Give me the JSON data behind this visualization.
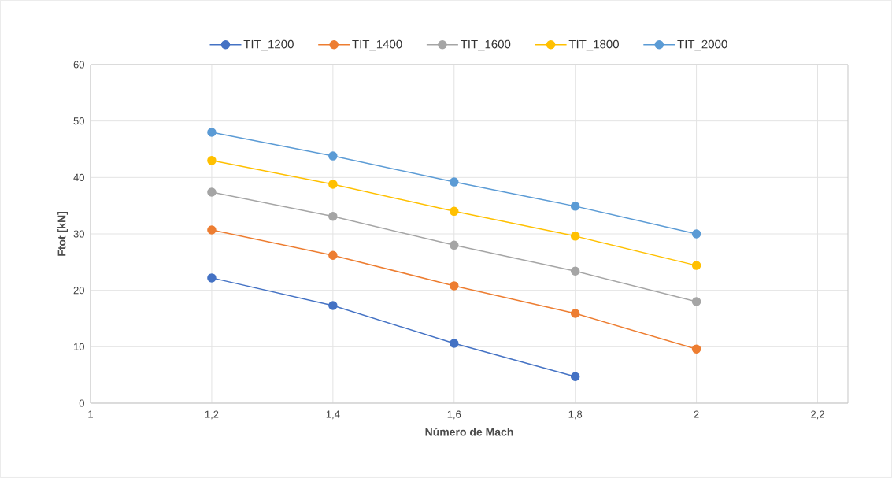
{
  "chart_data": {
    "type": "line",
    "xlabel": "Número de Mach",
    "ylabel": "Ftot [kN]",
    "x": [
      1.2,
      1.4,
      1.6,
      1.8,
      2.0
    ],
    "series": [
      {
        "name": "TIT_1200",
        "color": "#4472c4",
        "values": [
          22.2,
          17.3,
          10.6,
          4.7,
          null
        ]
      },
      {
        "name": "TIT_1400",
        "color": "#ed7d31",
        "values": [
          30.7,
          26.2,
          20.8,
          15.9,
          9.6
        ]
      },
      {
        "name": "TIT_1600",
        "color": "#a5a5a5",
        "values": [
          37.4,
          33.1,
          28.0,
          23.4,
          18.0
        ]
      },
      {
        "name": "TIT_1800",
        "color": "#ffc000",
        "values": [
          43.0,
          38.8,
          34.0,
          29.6,
          24.4
        ]
      },
      {
        "name": "TIT_2000",
        "color": "#5b9bd5",
        "values": [
          48.0,
          43.8,
          39.2,
          34.9,
          30.0
        ]
      }
    ],
    "xlim": [
      1,
      2.25
    ],
    "xticks": [
      1,
      {
        "value": 1.2,
        "label": "1,2"
      },
      {
        "value": 1.4,
        "label": "1,4"
      },
      {
        "value": 1.6,
        "label": "1,6"
      },
      {
        "value": 1.8,
        "label": "1,8"
      },
      2,
      {
        "value": 2.2,
        "label": "2,2"
      }
    ],
    "ylim": [
      0,
      60
    ],
    "yticks": [
      0,
      10,
      20,
      30,
      40,
      50,
      60
    ],
    "grid": true,
    "legend": "top",
    "marker": "circle",
    "line_style": "solid"
  }
}
